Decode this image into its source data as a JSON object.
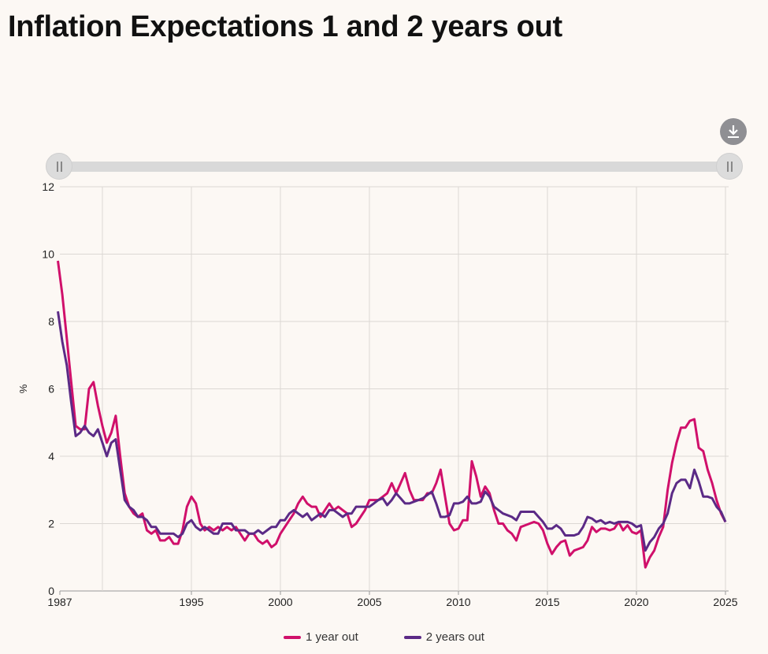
{
  "title": "Inflation Expectations 1 and 2 years out",
  "download_icon": "download-icon",
  "chart_data": {
    "type": "line",
    "title": "Inflation Expectations 1 and 2 years out",
    "xlabel": "",
    "ylabel": "%",
    "ylim": [
      0,
      12
    ],
    "yticks": [
      0,
      2,
      4,
      6,
      8,
      10,
      12
    ],
    "xticks": [
      1987,
      1995,
      2000,
      2005,
      2010,
      2015,
      2020,
      2025
    ],
    "grid": true,
    "legend": "bottom",
    "x_start": 1987.5,
    "x_end": 2025.0,
    "x_step_years": 0.25,
    "series": [
      {
        "name": "1 year out",
        "color": "#d0106b",
        "values": [
          9.8,
          8.8,
          7.5,
          6.2,
          4.9,
          4.8,
          4.8,
          6.0,
          6.2,
          5.5,
          4.9,
          4.4,
          4.7,
          5.2,
          4.0,
          2.9,
          2.5,
          2.3,
          2.2,
          2.3,
          1.8,
          1.7,
          1.8,
          1.5,
          1.5,
          1.6,
          1.4,
          1.4,
          1.8,
          2.5,
          2.8,
          2.6,
          2.0,
          1.8,
          1.9,
          1.8,
          1.9,
          1.8,
          1.9,
          1.8,
          1.9,
          1.7,
          1.5,
          1.7,
          1.7,
          1.5,
          1.4,
          1.5,
          1.3,
          1.4,
          1.7,
          1.9,
          2.1,
          2.3,
          2.6,
          2.8,
          2.6,
          2.5,
          2.5,
          2.2,
          2.4,
          2.6,
          2.4,
          2.5,
          2.4,
          2.3,
          1.9,
          2.0,
          2.2,
          2.4,
          2.7,
          2.7,
          2.7,
          2.8,
          2.9,
          3.2,
          2.9,
          3.2,
          3.5,
          3.0,
          2.7,
          2.7,
          2.7,
          2.9,
          2.9,
          3.2,
          3.6,
          2.8,
          2.0,
          1.8,
          1.85,
          2.1,
          2.1,
          3.85,
          3.4,
          2.8,
          3.1,
          2.9,
          2.4,
          2.0,
          2.0,
          1.8,
          1.7,
          1.5,
          1.9,
          1.95,
          2.0,
          2.05,
          2.0,
          1.8,
          1.4,
          1.1,
          1.3,
          1.45,
          1.5,
          1.05,
          1.2,
          1.25,
          1.3,
          1.5,
          1.9,
          1.75,
          1.85,
          1.85,
          1.8,
          1.85,
          2.05,
          1.8,
          1.95,
          1.75,
          1.7,
          1.8,
          0.7,
          1.0,
          1.2,
          1.6,
          1.9,
          3.0,
          3.8,
          4.4,
          4.85,
          4.85,
          5.05,
          5.1,
          4.25,
          4.15,
          3.6,
          3.2,
          2.7,
          2.3,
          2.05
        ]
      },
      {
        "name": "2 years out",
        "color": "#5b2a86",
        "values": [
          8.3,
          7.4,
          6.7,
          5.6,
          4.6,
          4.7,
          4.9,
          4.7,
          4.6,
          4.8,
          4.4,
          4.0,
          4.4,
          4.5,
          3.6,
          2.7,
          2.5,
          2.4,
          2.2,
          2.2,
          2.1,
          1.9,
          1.9,
          1.7,
          1.7,
          1.7,
          1.7,
          1.6,
          1.7,
          2.0,
          2.1,
          1.9,
          1.8,
          1.9,
          1.8,
          1.7,
          1.7,
          2.0,
          2.0,
          2.0,
          1.8,
          1.8,
          1.8,
          1.7,
          1.7,
          1.8,
          1.7,
          1.8,
          1.9,
          1.9,
          2.1,
          2.1,
          2.3,
          2.4,
          2.3,
          2.2,
          2.3,
          2.1,
          2.2,
          2.3,
          2.2,
          2.4,
          2.4,
          2.3,
          2.2,
          2.3,
          2.3,
          2.5,
          2.5,
          2.5,
          2.5,
          2.6,
          2.7,
          2.75,
          2.55,
          2.7,
          2.9,
          2.75,
          2.6,
          2.6,
          2.65,
          2.7,
          2.75,
          2.85,
          2.95,
          2.6,
          2.2,
          2.2,
          2.25,
          2.6,
          2.6,
          2.65,
          2.8,
          2.6,
          2.6,
          2.65,
          2.95,
          2.8,
          2.5,
          2.4,
          2.3,
          2.25,
          2.2,
          2.1,
          2.35,
          2.35,
          2.35,
          2.35,
          2.2,
          2.05,
          1.85,
          1.85,
          1.95,
          1.85,
          1.65,
          1.65,
          1.65,
          1.7,
          1.9,
          2.2,
          2.15,
          2.05,
          2.1,
          2.0,
          2.05,
          2.0,
          2.05,
          2.05,
          2.05,
          2.0,
          1.9,
          1.95,
          1.2,
          1.45,
          1.6,
          1.85,
          2.0,
          2.3,
          2.9,
          3.2,
          3.3,
          3.3,
          3.05,
          3.6,
          3.25,
          2.8,
          2.8,
          2.75,
          2.5,
          2.35,
          2.05
        ]
      }
    ]
  }
}
